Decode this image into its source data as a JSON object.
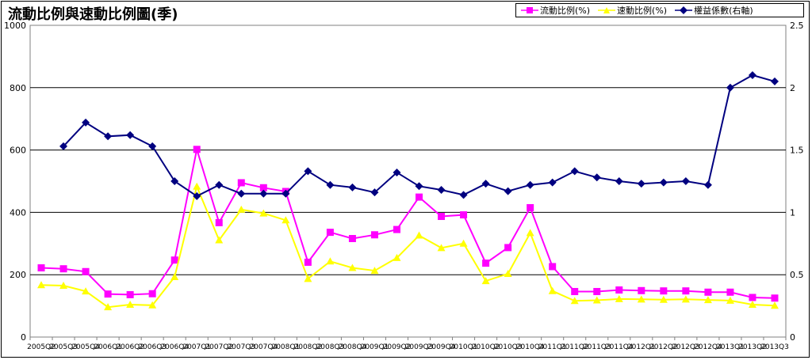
{
  "chart_data": {
    "type": "line",
    "title": "流動比例與速動比例圖(季)",
    "categories": [
      "2005Q2",
      "2005Q3",
      "2005Q4",
      "2006Q1",
      "2006Q2",
      "2006Q3",
      "2006Q4",
      "2007Q1",
      "2007Q2",
      "2007Q3",
      "2007Q4",
      "2008Q1",
      "2008Q2",
      "2008Q3",
      "2008Q4",
      "2009Q1",
      "2009Q2",
      "2009Q3",
      "2009Q4",
      "2010Q1",
      "2010Q2",
      "2010Q3",
      "2010Q4",
      "2011Q1",
      "2011Q2",
      "2011Q3",
      "2011Q4",
      "2012Q1",
      "2012Q2",
      "2012Q3",
      "2012Q4",
      "2013Q1",
      "2013Q2",
      "2013Q3"
    ],
    "ylim_left": [
      0,
      1000
    ],
    "yticks_left": [
      "0",
      "200",
      "400",
      "600",
      "800",
      "1000"
    ],
    "ylim_right": [
      0,
      2.5
    ],
    "yticks_right": [
      "0",
      "0.5",
      "1",
      "1.5",
      "2",
      "2.5"
    ],
    "grid": true,
    "legend_position": "top-right",
    "series": [
      {
        "name": "流動比例(%)",
        "color": "#ff00ff",
        "marker": "square",
        "axis": "left",
        "values": [
          222,
          219,
          210,
          138,
          136,
          139,
          247,
          602,
          367,
          495,
          479,
          467,
          240,
          336,
          316,
          328,
          345,
          449,
          387,
          392,
          237,
          287,
          415,
          226,
          146,
          146,
          151,
          149,
          148,
          148,
          144,
          144,
          127,
          125
        ]
      },
      {
        "name": "速動比例(%)",
        "color": "#ffff00",
        "marker": "triangle",
        "axis": "left",
        "values": [
          167,
          165,
          147,
          96,
          104,
          102,
          193,
          483,
          311,
          409,
          397,
          375,
          187,
          243,
          222,
          213,
          254,
          326,
          286,
          300,
          180,
          203,
          334,
          148,
          116,
          118,
          122,
          121,
          120,
          121,
          119,
          117,
          104,
          101
        ]
      },
      {
        "name": "權益係數(右軸)",
        "color": "#000080",
        "marker": "diamond",
        "axis": "right",
        "values": [
          null,
          1.53,
          1.72,
          1.61,
          1.62,
          1.53,
          1.25,
          1.13,
          1.22,
          1.15,
          1.15,
          1.15,
          1.33,
          1.22,
          1.2,
          1.16,
          1.32,
          1.21,
          1.18,
          1.14,
          1.23,
          1.17,
          1.22,
          1.24,
          1.33,
          1.28,
          1.25,
          1.23,
          1.24,
          1.25,
          1.22,
          2.0,
          2.1,
          2.05
        ]
      }
    ]
  }
}
